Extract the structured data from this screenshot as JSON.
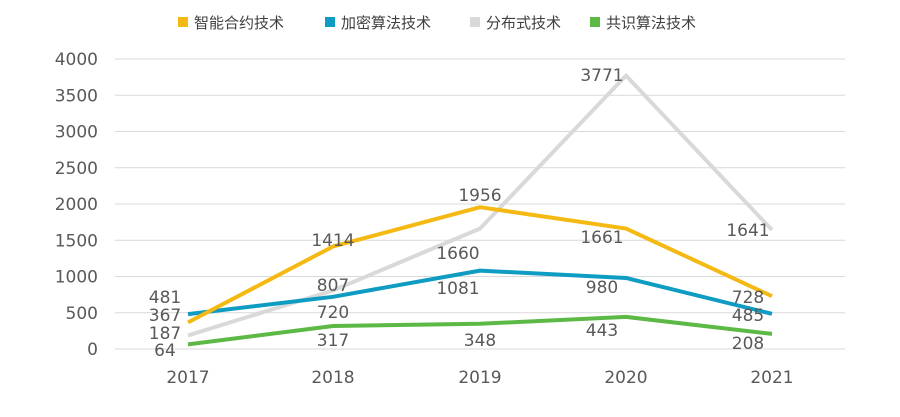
{
  "chart_data": {
    "type": "line",
    "categories": [
      "2017",
      "2018",
      "2019",
      "2020",
      "2021"
    ],
    "ylim": [
      0,
      4000
    ],
    "yticks": [
      0,
      500,
      1000,
      1500,
      2000,
      2500,
      3000,
      3500,
      4000
    ],
    "grid": true,
    "legend": "top",
    "series": [
      {
        "name": "智能合约技术",
        "color": "#F5B914",
        "values": [
          367,
          1414,
          1956,
          1661,
          728
        ]
      },
      {
        "name": "加密算法技术",
        "color": "#0E9CC2",
        "values": [
          481,
          720,
          1081,
          980,
          485
        ]
      },
      {
        "name": "分布式技术",
        "color": "#D9D9D9",
        "values": [
          187,
          807,
          1660,
          3771,
          1641
        ]
      },
      {
        "name": "共识算法技术",
        "color": "#5DB945",
        "values": [
          64,
          317,
          348,
          443,
          208
        ]
      }
    ]
  }
}
